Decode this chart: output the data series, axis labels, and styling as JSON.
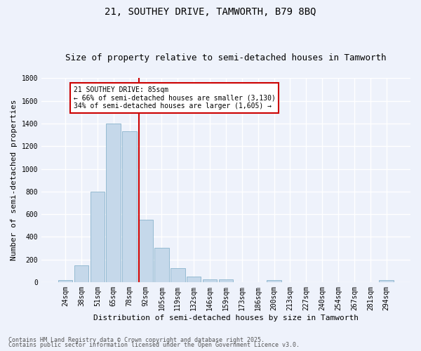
{
  "title1": "21, SOUTHEY DRIVE, TAMWORTH, B79 8BQ",
  "title2": "Size of property relative to semi-detached houses in Tamworth",
  "xlabel": "Distribution of semi-detached houses by size in Tamworth",
  "ylabel": "Number of semi-detached properties",
  "categories": [
    "24sqm",
    "38sqm",
    "51sqm",
    "65sqm",
    "78sqm",
    "92sqm",
    "105sqm",
    "119sqm",
    "132sqm",
    "146sqm",
    "159sqm",
    "173sqm",
    "186sqm",
    "200sqm",
    "213sqm",
    "227sqm",
    "240sqm",
    "254sqm",
    "267sqm",
    "281sqm",
    "294sqm"
  ],
  "values": [
    20,
    150,
    800,
    1400,
    1330,
    550,
    300,
    120,
    50,
    25,
    25,
    0,
    0,
    15,
    0,
    0,
    0,
    0,
    0,
    0,
    15
  ],
  "bar_color": "#c5d8ea",
  "bar_edge_color": "#8ab4cc",
  "vline_x_idx": 4.57,
  "vline_color": "#cc0000",
  "annotation_title": "21 SOUTHEY DRIVE: 85sqm",
  "annotation_line1": "← 66% of semi-detached houses are smaller (3,130)",
  "annotation_line2": "34% of semi-detached houses are larger (1,605) →",
  "annotation_box_color": "#ffffff",
  "annotation_box_edge": "#cc0000",
  "footnote1": "Contains HM Land Registry data © Crown copyright and database right 2025.",
  "footnote2": "Contains public sector information licensed under the Open Government Licence v3.0.",
  "ylim": [
    0,
    1800
  ],
  "yticks": [
    0,
    200,
    400,
    600,
    800,
    1000,
    1200,
    1400,
    1600,
    1800
  ],
  "background_color": "#eef2fb",
  "grid_color": "#ffffff",
  "title1_fontsize": 10,
  "title2_fontsize": 9,
  "xlabel_fontsize": 8,
  "ylabel_fontsize": 8,
  "tick_fontsize": 7,
  "annotation_fontsize": 7,
  "footnote_fontsize": 6
}
